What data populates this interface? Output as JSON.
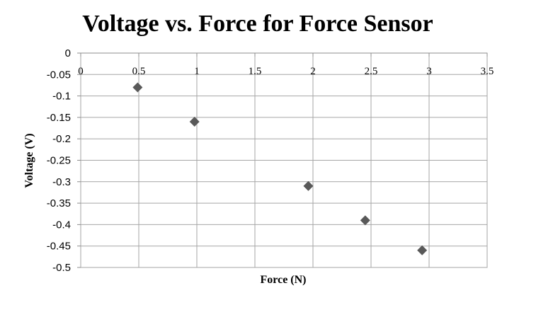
{
  "chart_data": {
    "type": "scatter",
    "title": "Voltage vs. Force for Force Sensor",
    "xlabel": "Force (N)",
    "ylabel": "Voltage (V)",
    "xlim": [
      0,
      3.5
    ],
    "ylim": [
      -0.5,
      0
    ],
    "x_ticks": [
      "0",
      "0.5",
      "1",
      "1.5",
      "2",
      "2.5",
      "3",
      "3.5"
    ],
    "y_ticks": [
      "0",
      "-0.05",
      "-0.1",
      "-0.15",
      "-0.2",
      "-0.25",
      "-0.3",
      "-0.35",
      "-0.4",
      "-0.45",
      "-0.5"
    ],
    "grid": true,
    "legend": "none",
    "marker": "diamond",
    "marker_color": "#595959",
    "series": [
      {
        "x": [
          0.49,
          0.98,
          1.96,
          2.45,
          2.94
        ],
        "y": [
          -0.08,
          -0.16,
          -0.31,
          -0.39,
          -0.46
        ]
      }
    ]
  }
}
